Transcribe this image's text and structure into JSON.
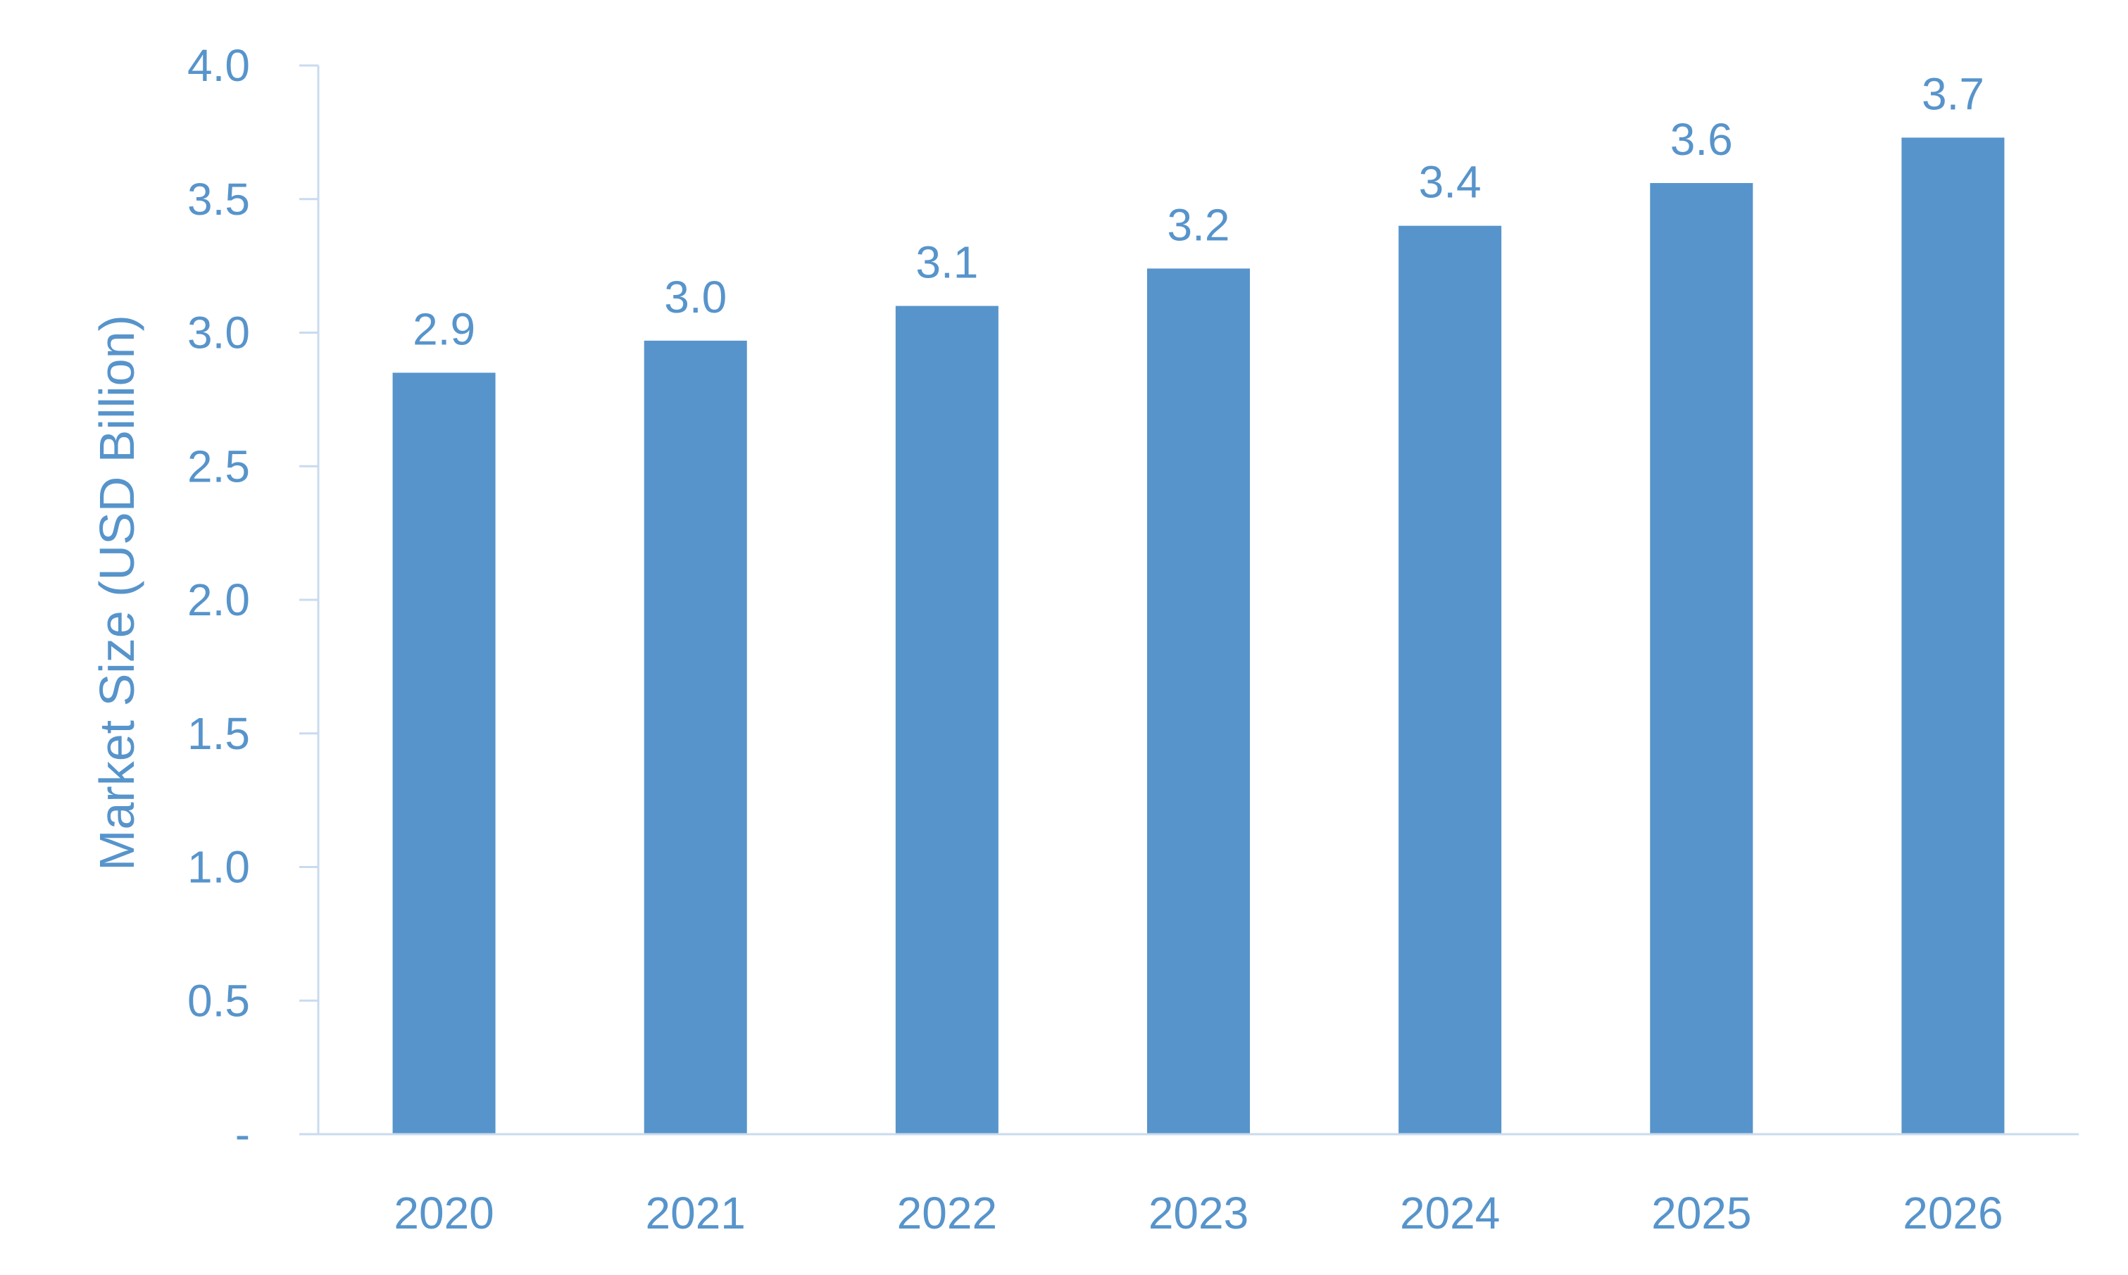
{
  "chart_data": {
    "type": "bar",
    "title": "",
    "xlabel": "",
    "ylabel": "Market Size (USD Billion)",
    "categories": [
      "2020",
      "2021",
      "2022",
      "2023",
      "2024",
      "2025",
      "2026"
    ],
    "values": [
      2.85,
      2.97,
      3.1,
      3.24,
      3.4,
      3.56,
      3.73
    ],
    "data_labels": [
      "2.9",
      "3.0",
      "3.1",
      "3.2",
      "3.4",
      "3.6",
      "3.7"
    ],
    "ylim": [
      0,
      4.0
    ],
    "yticks": [
      0,
      0.5,
      1.0,
      1.5,
      2.0,
      2.5,
      3.0,
      3.5,
      4.0
    ],
    "ytick_labels": [
      "-",
      "0.5",
      "1.0",
      "1.5",
      "2.0",
      "2.5",
      "3.0",
      "3.5",
      "4.0"
    ],
    "grid": false,
    "legend": "none",
    "colors": {
      "bar": "#5794CB",
      "text": "#5794CB",
      "axis": "#C9DBEE"
    }
  }
}
